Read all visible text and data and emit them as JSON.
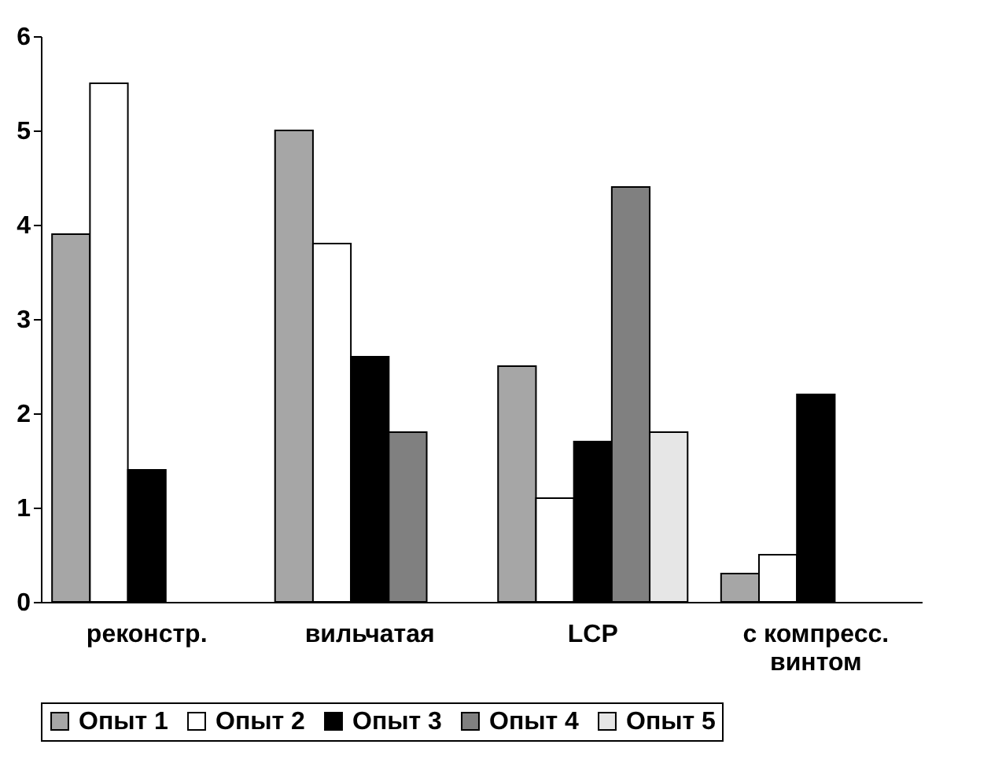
{
  "chart_data": {
    "type": "bar",
    "categories": [
      "реконстр.",
      "вильчатая",
      "LCP",
      "с компресс. винтом"
    ],
    "series": [
      {
        "name": "Опыт 1",
        "color": "#a6a6a6",
        "values": [
          3.9,
          5.0,
          2.5,
          0.3
        ]
      },
      {
        "name": "Опыт 2",
        "color": "#ffffff",
        "values": [
          5.5,
          3.8,
          1.1,
          0.5
        ]
      },
      {
        "name": "Опыт 3",
        "color": "#000000",
        "values": [
          1.4,
          2.6,
          1.7,
          2.2
        ]
      },
      {
        "name": "Опыт 4",
        "color": "#808080",
        "values": [
          0,
          1.8,
          4.4,
          0
        ]
      },
      {
        "name": "Опыт 5",
        "color": "#e6e6e6",
        "values": [
          0,
          0,
          1.8,
          0
        ]
      }
    ],
    "ylim": [
      0,
      6
    ],
    "yticks": [
      0,
      1,
      2,
      3,
      4,
      5,
      6
    ],
    "grid": false,
    "legend": "bottom"
  }
}
